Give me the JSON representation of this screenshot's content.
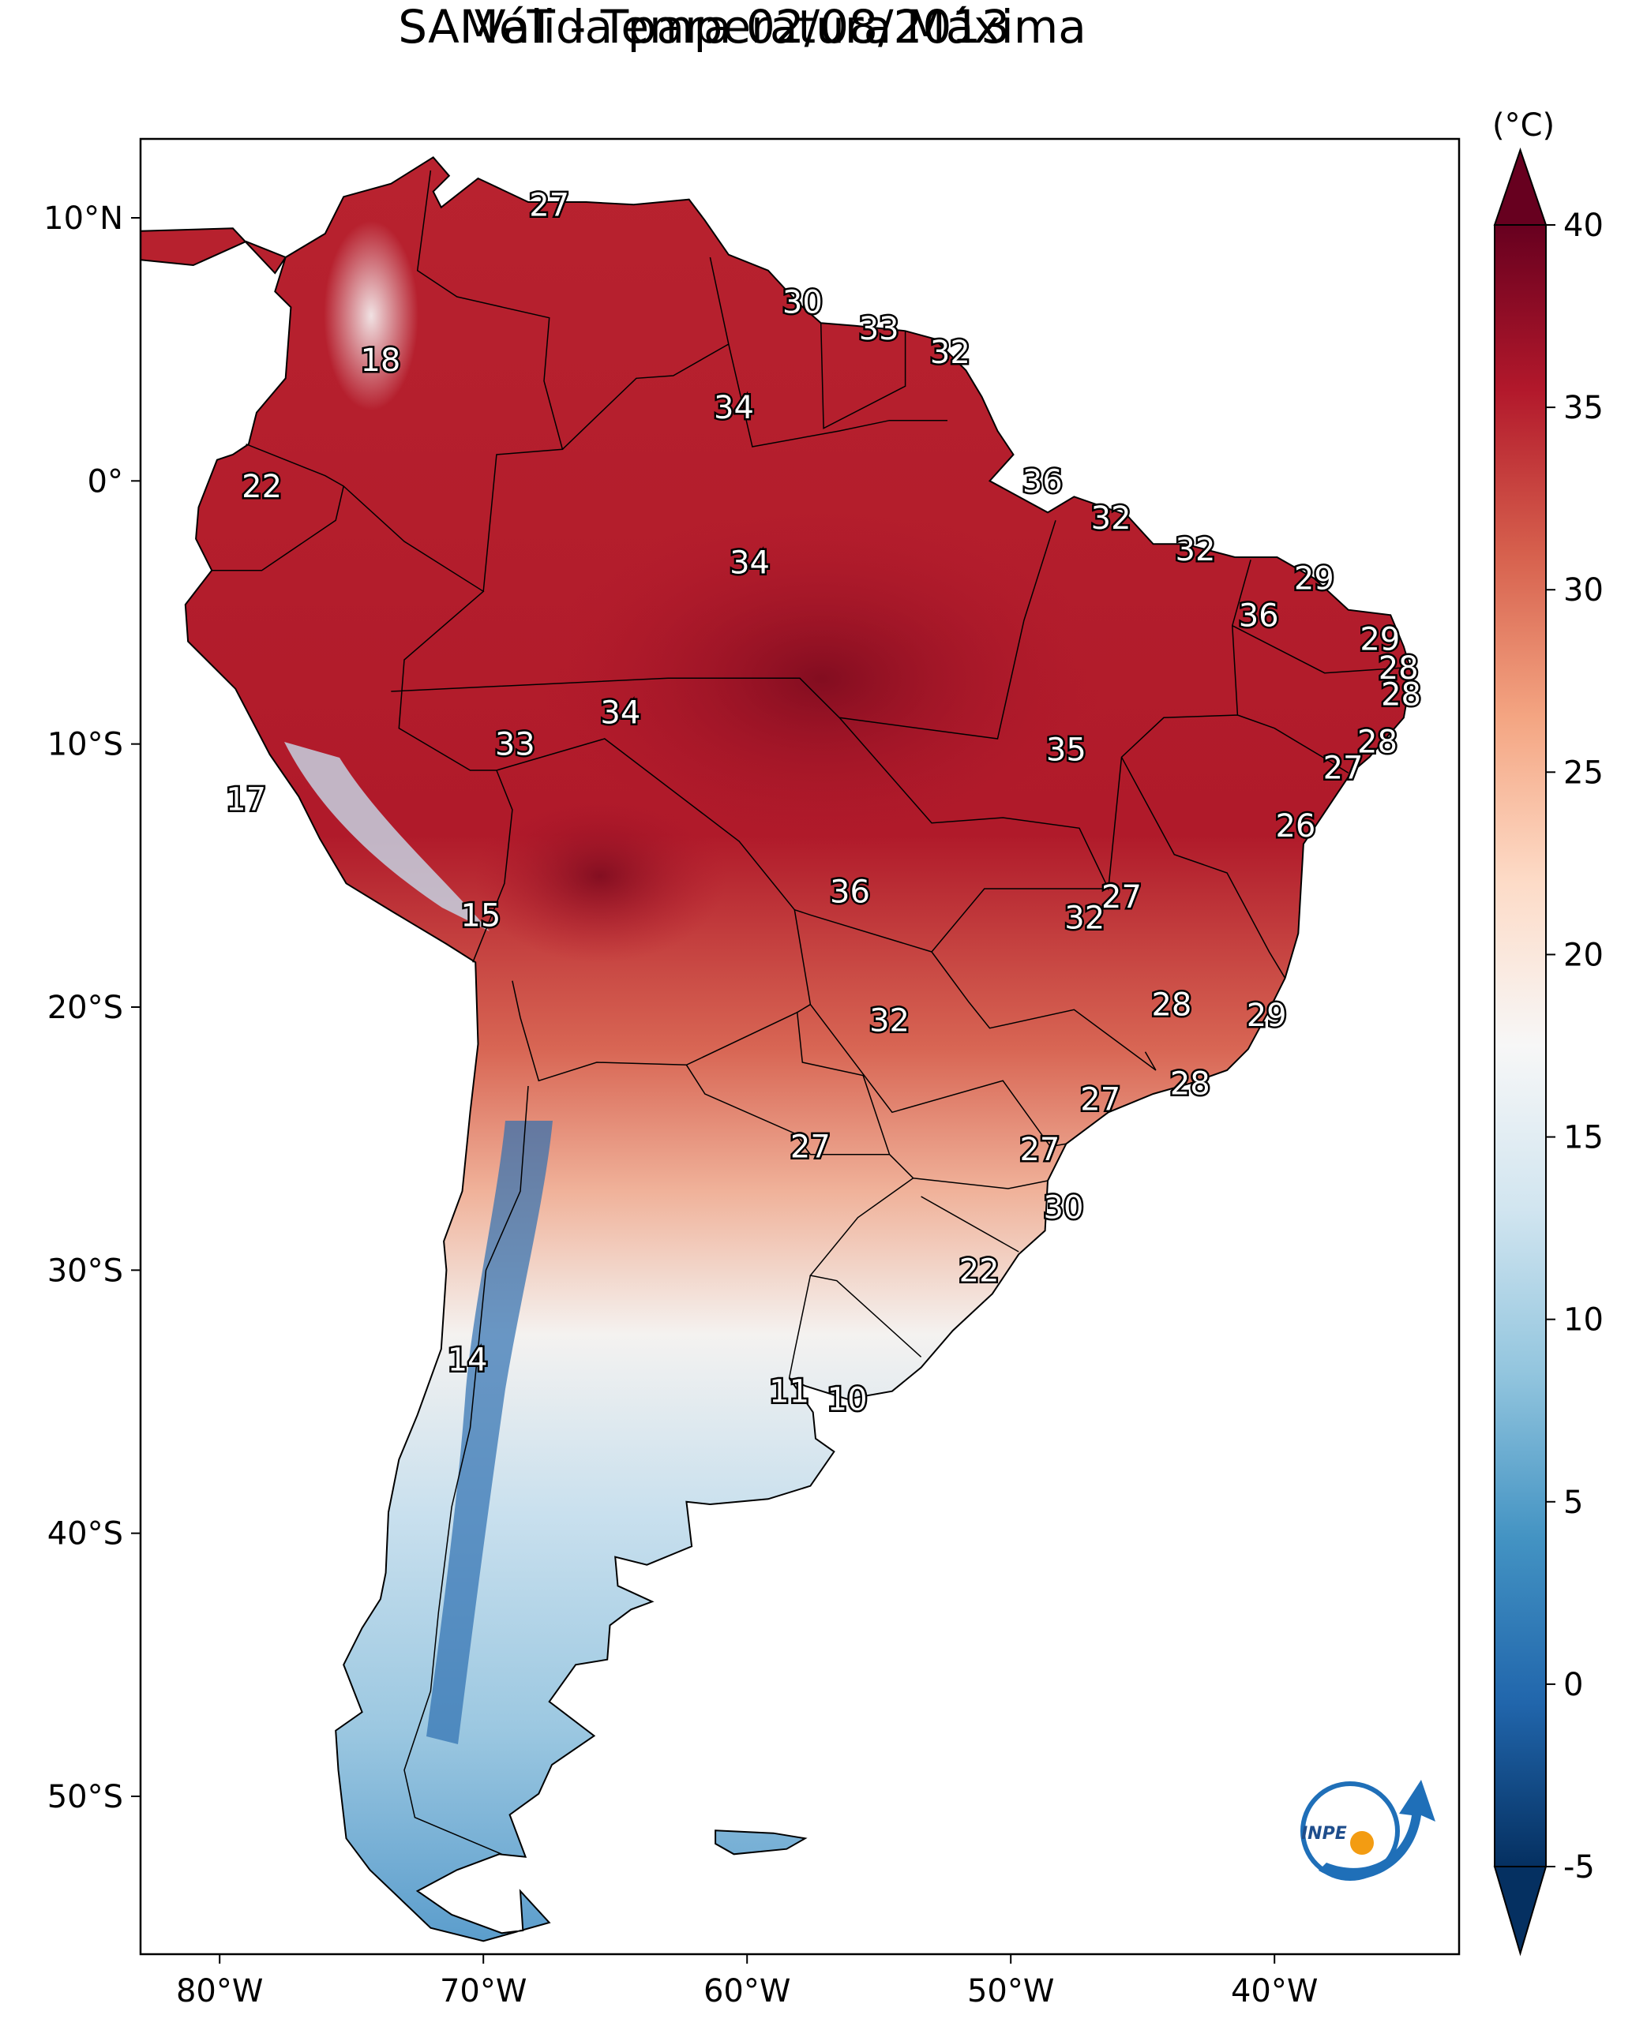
{
  "title": "SAMeT - Temperatura Máxima",
  "subtitle": "Válida para 02/08/2013",
  "map": {
    "lon_range": [
      -83,
      -33
    ],
    "lat_range": [
      -56,
      13
    ],
    "lon_ticks": [
      "80°W",
      "70°W",
      "60°W",
      "50°W",
      "40°W"
    ],
    "lat_ticks": [
      "10°N",
      "0°",
      "10°S",
      "20°S",
      "30°S",
      "40°S",
      "50°S"
    ]
  },
  "colorbar": {
    "unit": "(°C)",
    "min": -5,
    "max": 40,
    "extend": "both",
    "ticks": [
      "40",
      "35",
      "30",
      "25",
      "20",
      "15",
      "10",
      "5",
      "0",
      "-5"
    ],
    "colors": [
      "#053061",
      "#2166ac",
      "#4393c3",
      "#92c5de",
      "#d1e5f0",
      "#f7f7f7",
      "#fddbc7",
      "#f4a582",
      "#d6604d",
      "#b2182b",
      "#67001f"
    ]
  },
  "station_labels": [
    {
      "text": "27",
      "lon": -67.5,
      "lat": 10.5
    },
    {
      "text": "18",
      "lon": -73.9,
      "lat": 4.6
    },
    {
      "text": "22",
      "lon": -78.4,
      "lat": -0.2
    },
    {
      "text": "30",
      "lon": -57.9,
      "lat": 6.8
    },
    {
      "text": "33",
      "lon": -55.0,
      "lat": 5.8
    },
    {
      "text": "32",
      "lon": -52.3,
      "lat": 4.9
    },
    {
      "text": "34",
      "lon": -60.5,
      "lat": 2.8
    },
    {
      "text": "36",
      "lon": -48.8,
      "lat": 0.0
    },
    {
      "text": "32",
      "lon": -46.2,
      "lat": -1.4
    },
    {
      "text": "34",
      "lon": -59.9,
      "lat": -3.1
    },
    {
      "text": "32",
      "lon": -43.0,
      "lat": -2.6
    },
    {
      "text": "29",
      "lon": -38.5,
      "lat": -3.7
    },
    {
      "text": "36",
      "lon": -40.6,
      "lat": -5.1
    },
    {
      "text": "29",
      "lon": -36.0,
      "lat": -6.0
    },
    {
      "text": "28",
      "lon": -35.3,
      "lat": -7.1
    },
    {
      "text": "28",
      "lon": -35.2,
      "lat": -8.1
    },
    {
      "text": "28",
      "lon": -36.1,
      "lat": -9.9
    },
    {
      "text": "27",
      "lon": -37.4,
      "lat": -10.9
    },
    {
      "text": "26",
      "lon": -39.2,
      "lat": -13.1
    },
    {
      "text": "34",
      "lon": -64.8,
      "lat": -8.8
    },
    {
      "text": "33",
      "lon": -68.8,
      "lat": -10.0
    },
    {
      "text": "35",
      "lon": -47.9,
      "lat": -10.2
    },
    {
      "text": "17",
      "lon": -79.0,
      "lat": -12.1
    },
    {
      "text": "36",
      "lon": -56.1,
      "lat": -15.6
    },
    {
      "text": "27",
      "lon": -45.8,
      "lat": -15.8
    },
    {
      "text": "32",
      "lon": -47.2,
      "lat": -16.6
    },
    {
      "text": "15",
      "lon": -70.1,
      "lat": -16.5
    },
    {
      "text": "28",
      "lon": -43.9,
      "lat": -19.9
    },
    {
      "text": "29",
      "lon": -40.3,
      "lat": -20.3
    },
    {
      "text": "32",
      "lon": -54.6,
      "lat": -20.5
    },
    {
      "text": "27",
      "lon": -46.6,
      "lat": -23.5
    },
    {
      "text": "28",
      "lon": -43.2,
      "lat": -22.9
    },
    {
      "text": "27",
      "lon": -57.6,
      "lat": -25.3
    },
    {
      "text": "27",
      "lon": -48.9,
      "lat": -25.4
    },
    {
      "text": "30",
      "lon": -48.0,
      "lat": -27.6
    },
    {
      "text": "22",
      "lon": -51.2,
      "lat": -30.0
    },
    {
      "text": "14",
      "lon": -70.6,
      "lat": -33.4
    },
    {
      "text": "11",
      "lon": -58.4,
      "lat": -34.6
    },
    {
      "text": "10",
      "lon": -56.2,
      "lat": -34.9
    }
  ],
  "logo": {
    "text": "INPE"
  }
}
